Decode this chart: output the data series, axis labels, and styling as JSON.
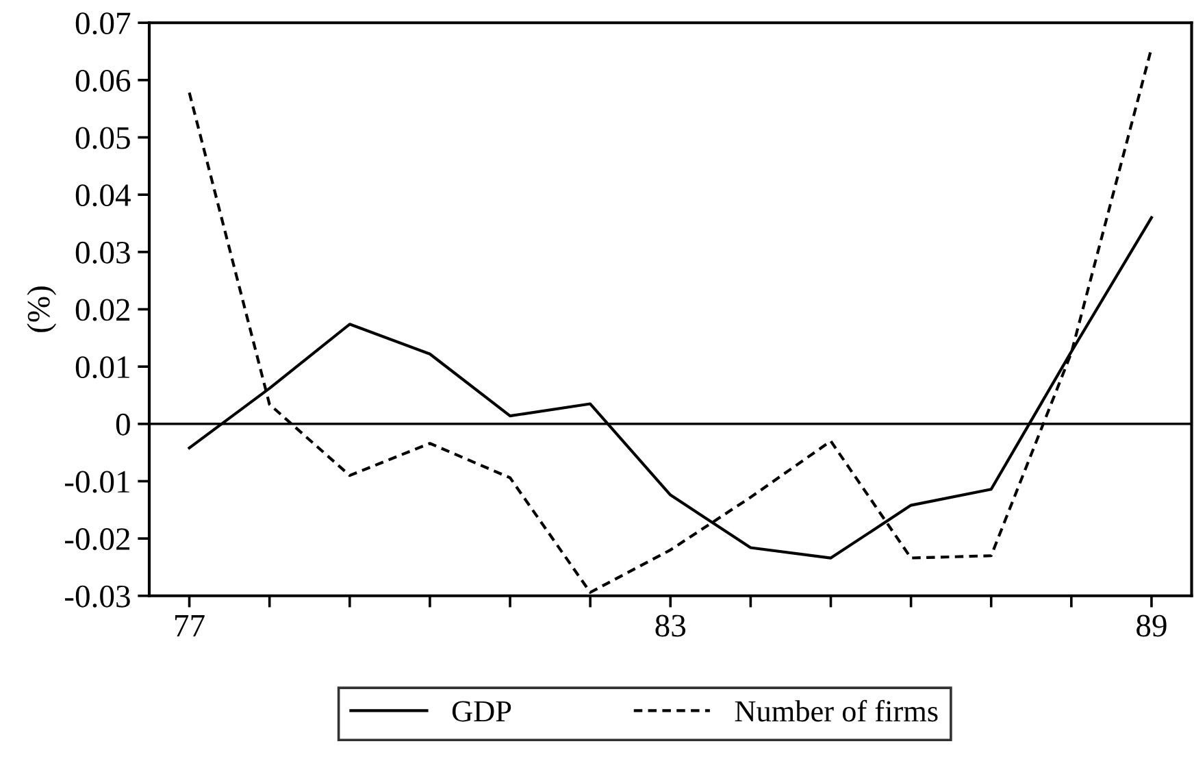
{
  "chart_data": {
    "type": "line",
    "ylabel": "(%)",
    "x": [
      77,
      78,
      79,
      80,
      81,
      82,
      83,
      84,
      85,
      86,
      87,
      88,
      89
    ],
    "series": [
      {
        "name": "GDP",
        "color": "#000000",
        "line_style": "solid",
        "values": [
          -0.0042,
          0.0062,
          0.0174,
          0.0122,
          0.0014,
          0.0035,
          -0.0124,
          -0.0216,
          -0.0234,
          -0.0142,
          -0.0114,
          0.0126,
          0.036
        ]
      },
      {
        "name": "Number of firms",
        "color": "#000000",
        "line_style": "dashed",
        "values": [
          0.0578,
          0.0034,
          -0.009,
          -0.0034,
          -0.0094,
          -0.0294,
          -0.022,
          -0.0128,
          -0.003,
          -0.0234,
          -0.023,
          0.0124,
          0.0656
        ]
      }
    ],
    "xlim": [
      76.5,
      89.5
    ],
    "xticks": [
      77,
      {
        "value": 78,
        "label": null
      },
      {
        "value": 79,
        "label": null
      },
      {
        "value": 80,
        "label": null
      },
      {
        "value": 81,
        "label": null
      },
      {
        "value": 82,
        "label": null
      },
      83,
      {
        "value": 84,
        "label": null
      },
      {
        "value": 85,
        "label": null
      },
      {
        "value": 86,
        "label": null
      },
      {
        "value": 87,
        "label": null
      },
      {
        "value": 88,
        "label": null
      },
      89
    ],
    "ylim": [
      -0.03,
      0.07
    ],
    "yticks": [
      -0.03,
      -0.02,
      -0.01,
      0,
      0.01,
      0.02,
      0.03,
      0.04,
      0.05,
      0.06,
      0.07
    ],
    "ref_lines": [
      {
        "axis": "y",
        "value": 0,
        "color": "#000000",
        "line_style": "solid"
      }
    ],
    "grid": false,
    "legend": "bottom",
    "marker": "none"
  }
}
